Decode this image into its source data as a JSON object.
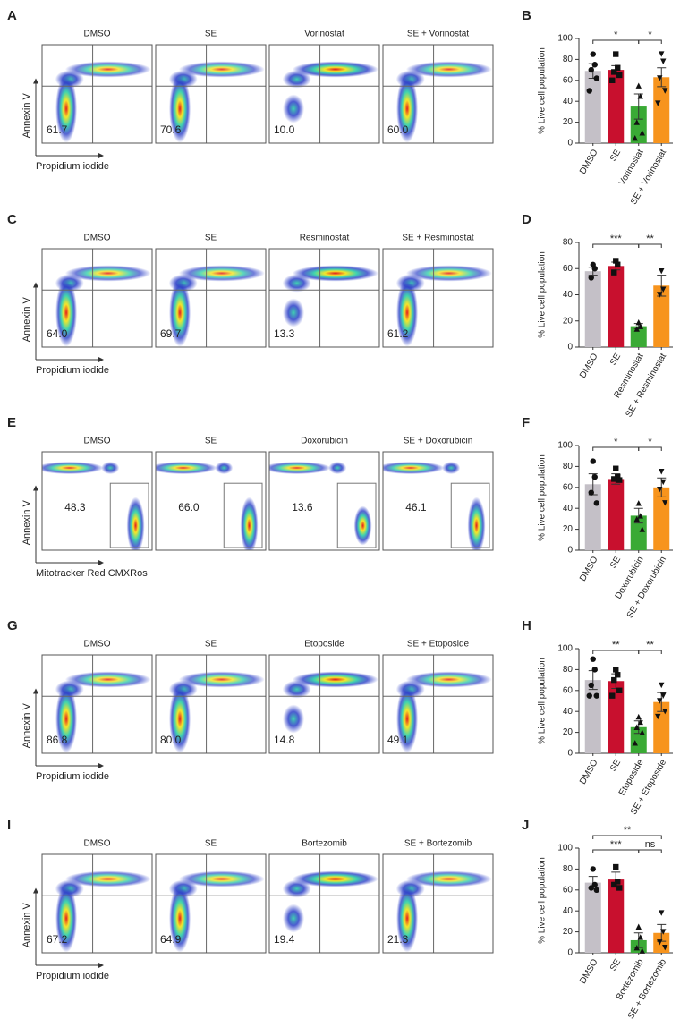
{
  "flow_panels": [
    {
      "letter": "A",
      "conditions": [
        "DMSO",
        "SE",
        "Vorinostat",
        "SE + Vorinostat"
      ],
      "gate_values": [
        "61.7",
        "70.6",
        "10.0",
        "60.0"
      ],
      "gate": "quadrant",
      "y_axis_label": "Annexin V",
      "x_axis_label": "Propidium iodide"
    },
    {
      "letter": "C",
      "conditions": [
        "DMSO",
        "SE",
        "Resminostat",
        "SE + Resminostat"
      ],
      "gate_values": [
        "64.0",
        "69.7",
        "13.3",
        "61.2"
      ],
      "gate": "quadrant",
      "y_axis_label": "Annexin V",
      "x_axis_label": "Propidium iodide"
    },
    {
      "letter": "E",
      "conditions": [
        "DMSO",
        "SE",
        "Doxorubicin",
        "SE + Doxorubicin"
      ],
      "gate_values": [
        "48.3",
        "66.0",
        "13.6",
        "46.1"
      ],
      "gate": "rectangle",
      "y_axis_label": "Annexin V",
      "x_axis_label": "Mitotracker Red CMXRos"
    },
    {
      "letter": "G",
      "conditions": [
        "DMSO",
        "SE",
        "Etoposide",
        "SE + Etoposide"
      ],
      "gate_values": [
        "86.8",
        "80.0",
        "14.8",
        "49.1"
      ],
      "gate": "quadrant",
      "y_axis_label": "Annexin V",
      "x_axis_label": "Propidium iodide"
    },
    {
      "letter": "I",
      "conditions": [
        "DMSO",
        "SE",
        "Bortezomib",
        "SE + Bortezomib"
      ],
      "gate_values": [
        "67.2",
        "64.9",
        "19.4",
        "21.3"
      ],
      "gate": "quadrant",
      "y_axis_label": "Annexin V",
      "x_axis_label": "Propidium iodide"
    }
  ],
  "chart_data": [
    {
      "type": "bar",
      "panel_letter": "B",
      "y_label": "% Live cell population",
      "categories": [
        "DMSO",
        "SE",
        "Vorinostat",
        "SE + Vorinostat"
      ],
      "colors": [
        "#c4c0c7",
        "#c8102e",
        "#3aaa35",
        "#f7941d"
      ],
      "values": [
        69,
        70,
        35,
        63
      ],
      "errors": [
        7,
        4,
        12,
        9
      ],
      "points": [
        [
          85,
          75,
          70,
          62,
          50
        ],
        [
          85,
          72,
          68,
          65,
          60
        ],
        [
          55,
          45,
          20,
          10,
          5
        ],
        [
          85,
          78,
          62,
          50,
          38
        ]
      ],
      "ylim": [
        0,
        100
      ],
      "yticks": [
        0,
        20,
        40,
        60,
        80,
        100
      ],
      "comparisons": [
        {
          "from": 0,
          "to": 2,
          "label": "*"
        },
        {
          "from": 2,
          "to": 3,
          "label": "*"
        }
      ]
    },
    {
      "type": "bar",
      "panel_letter": "D",
      "y_label": "% Live cell population",
      "categories": [
        "DMSO",
        "SE",
        "Resminostat",
        "SE + Resminostat"
      ],
      "colors": [
        "#c4c0c7",
        "#c8102e",
        "#3aaa35",
        "#f7941d"
      ],
      "values": [
        58,
        62,
        16,
        47
      ],
      "errors": [
        3,
        3,
        2,
        8
      ],
      "points": [
        [
          63,
          60,
          53
        ],
        [
          66,
          63,
          57
        ],
        [
          19,
          16,
          14
        ],
        [
          58,
          44,
          40
        ]
      ],
      "ylim": [
        0,
        80
      ],
      "yticks": [
        0,
        20,
        40,
        60,
        80
      ],
      "comparisons": [
        {
          "from": 0,
          "to": 2,
          "label": "***"
        },
        {
          "from": 2,
          "to": 3,
          "label": "**"
        }
      ]
    },
    {
      "type": "bar",
      "panel_letter": "F",
      "y_label": "% Live cell population",
      "categories": [
        "DMSO",
        "SE",
        "Doxorubicin",
        "SE + Doxorubicin"
      ],
      "colors": [
        "#c4c0c7",
        "#c8102e",
        "#3aaa35",
        "#f7941d"
      ],
      "values": [
        63,
        68,
        33,
        60
      ],
      "errors": [
        10,
        5,
        7,
        9
      ],
      "points": [
        [
          85,
          70,
          55,
          45
        ],
        [
          78,
          70,
          68,
          67
        ],
        [
          45,
          33,
          30,
          20
        ],
        [
          75,
          65,
          58,
          45
        ]
      ],
      "ylim": [
        0,
        100
      ],
      "yticks": [
        0,
        20,
        40,
        60,
        80,
        100
      ],
      "comparisons": [
        {
          "from": 0,
          "to": 2,
          "label": "*"
        },
        {
          "from": 2,
          "to": 3,
          "label": "*"
        }
      ]
    },
    {
      "type": "bar",
      "panel_letter": "H",
      "y_label": "% Live cell population",
      "categories": [
        "DMSO",
        "SE",
        "Etoposide",
        "SE + Etoposide"
      ],
      "colors": [
        "#c4c0c7",
        "#c8102e",
        "#3aaa35",
        "#f7941d"
      ],
      "values": [
        70,
        69,
        25,
        49
      ],
      "errors": [
        9,
        7,
        6,
        9
      ],
      "points": [
        [
          90,
          80,
          65,
          55,
          55
        ],
        [
          80,
          75,
          70,
          60,
          55
        ],
        [
          35,
          30,
          25,
          20,
          10
        ],
        [
          65,
          55,
          50,
          40,
          35
        ]
      ],
      "ylim": [
        0,
        100
      ],
      "yticks": [
        0,
        20,
        40,
        60,
        80,
        100
      ],
      "comparisons": [
        {
          "from": 0,
          "to": 2,
          "label": "**"
        },
        {
          "from": 2,
          "to": 3,
          "label": "**"
        }
      ]
    },
    {
      "type": "bar",
      "panel_letter": "J",
      "y_label": "% Live cell population",
      "categories": [
        "DMSO",
        "SE",
        "Bortezomib",
        "SE + Bortezomib"
      ],
      "colors": [
        "#c4c0c7",
        "#c8102e",
        "#3aaa35",
        "#f7941d"
      ],
      "values": [
        67,
        70,
        12,
        19
      ],
      "errors": [
        6,
        7,
        7,
        8
      ],
      "points": [
        [
          80,
          65,
          62,
          60
        ],
        [
          82,
          68,
          65,
          62
        ],
        [
          25,
          15,
          5,
          2
        ],
        [
          38,
          20,
          10,
          5
        ]
      ],
      "ylim": [
        0,
        100
      ],
      "yticks": [
        0,
        20,
        40,
        60,
        80,
        100
      ],
      "comparisons": [
        {
          "from": 0,
          "to": 2,
          "label": "***"
        },
        {
          "from": 2,
          "to": 3,
          "label": "ns"
        },
        {
          "from": 0,
          "to": 3,
          "label": "**"
        }
      ]
    }
  ]
}
